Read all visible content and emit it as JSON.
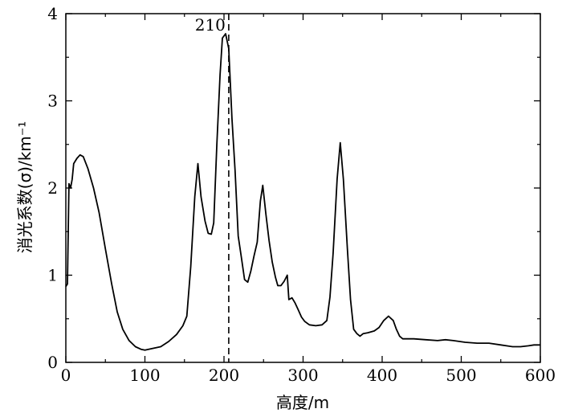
{
  "chart_data": {
    "type": "line",
    "xlabel": "高度/m",
    "ylabel": "消光系数(σ)/km⁻¹",
    "xlim": [
      0,
      600
    ],
    "ylim": [
      0,
      4
    ],
    "xticks": [
      0,
      100,
      200,
      300,
      400,
      500,
      600
    ],
    "yticks": [
      0,
      1,
      2,
      3,
      4
    ],
    "grid": false,
    "annotation": {
      "label": "210",
      "x": 206,
      "style": "dashed-vertical-line"
    },
    "series": [
      {
        "points": [
          [
            0,
            0.87
          ],
          [
            2,
            0.9
          ],
          [
            4,
            2.05
          ],
          [
            6,
            2.0
          ],
          [
            8,
            2.1
          ],
          [
            10,
            2.28
          ],
          [
            14,
            2.34
          ],
          [
            18,
            2.38
          ],
          [
            22,
            2.36
          ],
          [
            28,
            2.22
          ],
          [
            35,
            2.0
          ],
          [
            42,
            1.72
          ],
          [
            50,
            1.3
          ],
          [
            58,
            0.9
          ],
          [
            65,
            0.58
          ],
          [
            72,
            0.38
          ],
          [
            80,
            0.25
          ],
          [
            88,
            0.18
          ],
          [
            95,
            0.15
          ],
          [
            100,
            0.14
          ],
          [
            110,
            0.16
          ],
          [
            120,
            0.18
          ],
          [
            130,
            0.24
          ],
          [
            140,
            0.32
          ],
          [
            148,
            0.42
          ],
          [
            153,
            0.53
          ],
          [
            158,
            1.1
          ],
          [
            163,
            1.9
          ],
          [
            167,
            2.28
          ],
          [
            171,
            1.9
          ],
          [
            176,
            1.62
          ],
          [
            180,
            1.48
          ],
          [
            184,
            1.47
          ],
          [
            187,
            1.6
          ],
          [
            191,
            2.5
          ],
          [
            195,
            3.3
          ],
          [
            198,
            3.72
          ],
          [
            202,
            3.77
          ],
          [
            206,
            3.6
          ],
          [
            210,
            2.8
          ],
          [
            214,
            2.2
          ],
          [
            218,
            1.45
          ],
          [
            222,
            1.2
          ],
          [
            226,
            0.95
          ],
          [
            230,
            0.92
          ],
          [
            234,
            1.05
          ],
          [
            238,
            1.22
          ],
          [
            242,
            1.38
          ],
          [
            246,
            1.85
          ],
          [
            249,
            2.03
          ],
          [
            253,
            1.7
          ],
          [
            257,
            1.4
          ],
          [
            261,
            1.15
          ],
          [
            265,
            0.98
          ],
          [
            268,
            0.88
          ],
          [
            272,
            0.88
          ],
          [
            276,
            0.93
          ],
          [
            280,
            1.0
          ],
          [
            282,
            0.72
          ],
          [
            286,
            0.74
          ],
          [
            290,
            0.68
          ],
          [
            294,
            0.6
          ],
          [
            298,
            0.52
          ],
          [
            302,
            0.47
          ],
          [
            308,
            0.43
          ],
          [
            316,
            0.42
          ],
          [
            324,
            0.43
          ],
          [
            330,
            0.48
          ],
          [
            334,
            0.75
          ],
          [
            338,
            1.25
          ],
          [
            343,
            2.1
          ],
          [
            347,
            2.52
          ],
          [
            351,
            2.1
          ],
          [
            356,
            1.3
          ],
          [
            360,
            0.72
          ],
          [
            364,
            0.38
          ],
          [
            368,
            0.33
          ],
          [
            372,
            0.3
          ],
          [
            376,
            0.33
          ],
          [
            382,
            0.34
          ],
          [
            390,
            0.36
          ],
          [
            396,
            0.4
          ],
          [
            402,
            0.48
          ],
          [
            408,
            0.53
          ],
          [
            414,
            0.48
          ],
          [
            418,
            0.38
          ],
          [
            422,
            0.3
          ],
          [
            426,
            0.27
          ],
          [
            440,
            0.27
          ],
          [
            455,
            0.26
          ],
          [
            470,
            0.25
          ],
          [
            480,
            0.26
          ],
          [
            490,
            0.25
          ],
          [
            505,
            0.23
          ],
          [
            520,
            0.22
          ],
          [
            535,
            0.22
          ],
          [
            550,
            0.2
          ],
          [
            565,
            0.18
          ],
          [
            575,
            0.18
          ],
          [
            585,
            0.19
          ],
          [
            592,
            0.2
          ],
          [
            600,
            0.2
          ]
        ]
      }
    ]
  }
}
